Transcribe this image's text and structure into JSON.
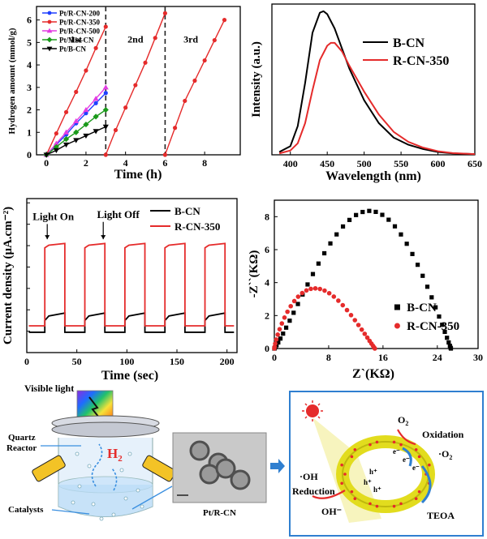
{
  "chart_data": [
    {
      "type": "line",
      "panel": "hydrogen",
      "xlabel": "Time (h)",
      "ylabel": "Hydrogen amount (mmol/g)",
      "xlim": [
        -0.5,
        9.8
      ],
      "ylim": [
        0,
        6.6
      ],
      "xticks": [
        0,
        2,
        4,
        6,
        8
      ],
      "yticks": [
        0,
        1,
        2,
        3,
        4,
        5,
        6
      ],
      "grid": false,
      "legend_position": "top-left",
      "cycle_labels": [
        {
          "text": "1st",
          "x": 1.5,
          "y": 5.0
        },
        {
          "text": "2nd",
          "x": 4.5,
          "y": 5.0
        },
        {
          "text": "3rd",
          "x": 7.3,
          "y": 5.0
        }
      ],
      "dividers": [
        3,
        6
      ],
      "series": [
        {
          "name": "Pt/R-CN-200",
          "color": "#1f3fff",
          "marker": "circle",
          "x": [
            0,
            0.5,
            1,
            1.5,
            2,
            2.5,
            3
          ],
          "y": [
            0,
            0.45,
            0.9,
            1.4,
            1.85,
            2.3,
            2.75
          ]
        },
        {
          "name": "Pt/R-CN-350",
          "color": "#e52b2b",
          "marker": "circle",
          "x": [
            0,
            0.5,
            1,
            1.5,
            2,
            2.5,
            3,
            3,
            3.5,
            4,
            4.5,
            5,
            5.5,
            6,
            6,
            6.5,
            7,
            7.5,
            8,
            8.5,
            9
          ],
          "y": [
            0,
            0.95,
            1.9,
            2.8,
            3.75,
            4.75,
            5.7,
            0,
            1.1,
            2.1,
            3.1,
            4.1,
            5.2,
            6.3,
            0,
            1.2,
            2.4,
            3.3,
            4.2,
            5.1,
            6.0
          ]
        },
        {
          "name": "Pt/R-CN-500",
          "color": "#e23de2",
          "marker": "triangle",
          "x": [
            0,
            0.5,
            1,
            1.5,
            2,
            2.5,
            3
          ],
          "y": [
            0,
            0.5,
            1.0,
            1.5,
            2.0,
            2.5,
            3.0
          ]
        },
        {
          "name": "Pt/Mix-CN",
          "color": "#1a9a1a",
          "marker": "diamond",
          "x": [
            0,
            0.5,
            1,
            1.5,
            2,
            2.5,
            3
          ],
          "y": [
            0,
            0.35,
            0.7,
            1.0,
            1.35,
            1.7,
            2.0
          ]
        },
        {
          "name": "Pt/B-CN",
          "color": "#000000",
          "marker": "triangle-down",
          "x": [
            0,
            0.5,
            1,
            1.5,
            2,
            2.5,
            3
          ],
          "y": [
            0,
            0.2,
            0.45,
            0.65,
            0.85,
            1.05,
            1.25
          ]
        }
      ]
    },
    {
      "type": "line",
      "panel": "pl",
      "xlabel": "Wavelength (nm)",
      "ylabel": "Intensity (a.u.)",
      "xlim": [
        375,
        650
      ],
      "ylim": [
        0,
        1.05
      ],
      "xticks": [
        400,
        450,
        500,
        550,
        600,
        650
      ],
      "grid": false,
      "legend_position": "top-right",
      "series": [
        {
          "name": "B-CN",
          "color": "#000000",
          "x": [
            385,
            400,
            410,
            420,
            430,
            440,
            445,
            450,
            460,
            470,
            480,
            500,
            520,
            540,
            560,
            580,
            600,
            620,
            650
          ],
          "y": [
            0.02,
            0.06,
            0.2,
            0.5,
            0.85,
            0.99,
            1.0,
            0.98,
            0.88,
            0.74,
            0.6,
            0.38,
            0.22,
            0.12,
            0.07,
            0.04,
            0.02,
            0.01,
            0.005
          ]
        },
        {
          "name": "R-CN-350",
          "color": "#e52b2b",
          "x": [
            385,
            400,
            410,
            420,
            430,
            440,
            450,
            455,
            460,
            470,
            480,
            500,
            520,
            540,
            560,
            580,
            600,
            620,
            650
          ],
          "y": [
            0.01,
            0.03,
            0.08,
            0.22,
            0.45,
            0.66,
            0.76,
            0.78,
            0.78,
            0.72,
            0.62,
            0.44,
            0.28,
            0.16,
            0.09,
            0.05,
            0.025,
            0.012,
            0.005
          ]
        }
      ]
    },
    {
      "type": "line",
      "panel": "photocurrent",
      "xlabel": "Time (sec)",
      "ylabel": "Current density (μA.cm⁻²)",
      "xlim": [
        0,
        210
      ],
      "ylim": [
        2,
        9.2
      ],
      "xticks": [
        0,
        50,
        100,
        150,
        200
      ],
      "yticks": [
        3,
        4,
        5,
        6,
        7,
        8,
        9
      ],
      "grid": false,
      "legend_position": "top-right",
      "annotations": [
        {
          "text": "Light On",
          "x": 20,
          "y": 8.2
        },
        {
          "text": "Light Off",
          "x": 80,
          "y": 8.3
        }
      ],
      "on_intervals": [
        [
          18,
          38
        ],
        [
          58,
          78
        ],
        [
          98,
          118
        ],
        [
          138,
          158
        ],
        [
          178,
          198
        ]
      ],
      "series": [
        {
          "name": "B-CN",
          "color": "#000000",
          "dark": 2.95,
          "light_start": 3.5,
          "light_end": 3.85
        },
        {
          "name": "R-CN-350",
          "color": "#e52b2b",
          "dark": 3.25,
          "light_start": 6.9,
          "light_end": 7.1
        }
      ]
    },
    {
      "type": "scatter",
      "panel": "eis",
      "xlabel": "Z`(KΩ)",
      "ylabel": "-Z``(KΩ)",
      "xlim": [
        0,
        30
      ],
      "ylim": [
        0,
        9
      ],
      "xticks": [
        0,
        8,
        16,
        24,
        30
      ],
      "yticks": [
        0,
        2,
        4,
        6,
        8
      ],
      "grid": false,
      "legend_position": "bottom-right",
      "series": [
        {
          "name": "B-CN",
          "color": "#000000",
          "marker": "square",
          "arc": {
            "x0": 0.0,
            "x1": 26.0,
            "peak": 8.35,
            "peak_x": 14.0
          }
        },
        {
          "name": "R-CN-350",
          "color": "#e52b2b",
          "marker": "circle",
          "arc": {
            "x0": 0.0,
            "x1": 14.8,
            "peak": 3.65,
            "peak_x": 6.0
          }
        }
      ]
    }
  ],
  "schematic": {
    "visible_light_label": "Visible light",
    "quartz_reactor_label": "Quartz\nReactor",
    "h2_label": "H",
    "h2_subscript": "2",
    "catalysts_label": "Catalysts",
    "tem_caption": "Pt/R-CN",
    "o2_label": "O",
    "o2_subscript": "2",
    "oxidation_label": "Oxidation",
    "o2_radical_label": "·O",
    "o2_radical_subscript": "2",
    "oh_radical_label": "·OH",
    "reduction_label": "Reduction",
    "oh_minus_label": "OH⁻",
    "teoa_label": "TEOA",
    "electron_label": "e⁻",
    "hole_label": "h⁺"
  }
}
